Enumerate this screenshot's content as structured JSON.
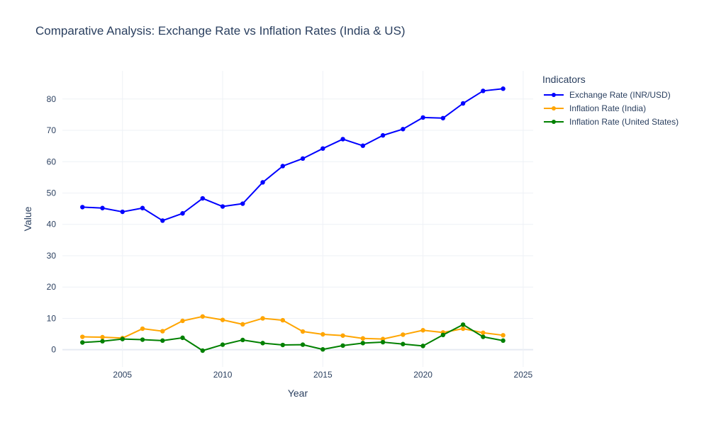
{
  "chart_data": {
    "type": "line",
    "title": "Comparative Analysis: Exchange Rate vs Inflation Rates (India & US)",
    "xlabel": "Year",
    "ylabel": "Value",
    "xlim": [
      2002,
      2025.5
    ],
    "ylim": [
      -5.5,
      89
    ],
    "x_ticks": [
      2005,
      2010,
      2015,
      2020,
      2025
    ],
    "y_ticks": [
      0,
      10,
      20,
      30,
      40,
      50,
      60,
      70,
      80
    ],
    "grid": true,
    "legend_title": "Indicators",
    "legend_position": "right",
    "x": [
      2003,
      2004,
      2005,
      2006,
      2007,
      2008,
      2009,
      2010,
      2011,
      2012,
      2013,
      2014,
      2015,
      2016,
      2017,
      2018,
      2019,
      2020,
      2021,
      2022,
      2023,
      2024
    ],
    "series": [
      {
        "name": "Exchange Rate (INR/USD)",
        "color": "#0000ff",
        "values": [
          45.5,
          45.2,
          44.0,
          45.2,
          41.2,
          43.5,
          48.3,
          45.7,
          46.6,
          53.4,
          58.6,
          61.0,
          64.2,
          67.2,
          65.1,
          68.4,
          70.4,
          74.1,
          73.9,
          78.6,
          82.6,
          83.3
        ]
      },
      {
        "name": "Inflation Rate (India)",
        "color": "#ffa500",
        "values": [
          4.1,
          4.0,
          3.7,
          6.7,
          5.9,
          9.2,
          10.6,
          9.5,
          8.1,
          10.0,
          9.4,
          5.8,
          4.9,
          4.5,
          3.6,
          3.4,
          4.8,
          6.2,
          5.5,
          6.7,
          5.4,
          4.6
        ]
      },
      {
        "name": "Inflation Rate (United States)",
        "color": "#008000",
        "values": [
          2.3,
          2.7,
          3.4,
          3.2,
          2.9,
          3.8,
          -0.3,
          1.6,
          3.1,
          2.1,
          1.5,
          1.6,
          0.1,
          1.3,
          2.1,
          2.4,
          1.8,
          1.2,
          4.7,
          8.0,
          4.1,
          2.9
        ]
      }
    ]
  }
}
